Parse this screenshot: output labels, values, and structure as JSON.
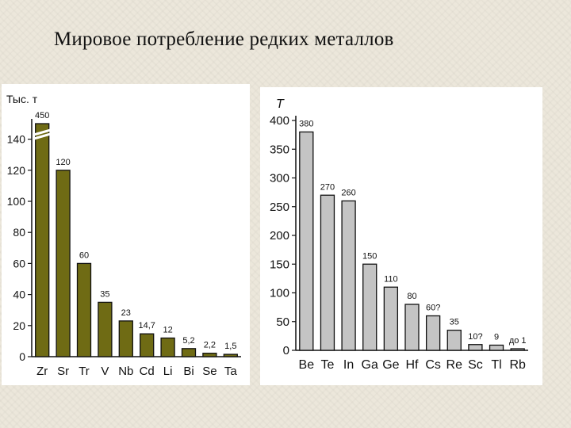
{
  "slide": {
    "title": "Мировое потребление редких металлов"
  },
  "colors": {
    "left_bar": "#6f6b14",
    "right_bar": "#c4c4c4",
    "bar_stroke": "#111111"
  },
  "chart_data": [
    {
      "type": "bar",
      "ylabel": "Тыс. т",
      "ylim": [
        0,
        150
      ],
      "yticks": [
        0,
        20,
        40,
        60,
        80,
        100,
        120,
        140
      ],
      "grid": false,
      "categories": [
        "Zr",
        "Sr",
        "Tr",
        "V",
        "Nb",
        "Cd",
        "Li",
        "Bi",
        "Se",
        "Ta"
      ],
      "values": [
        450,
        120,
        60,
        35,
        23,
        14.7,
        12,
        5.2,
        2.2,
        1.5
      ],
      "data_labels": [
        "450",
        "120",
        "60",
        "35",
        "23",
        "14,7",
        "12",
        "5,2",
        "2,2",
        "1,5"
      ],
      "axis_break": {
        "category": "Zr",
        "value": 450
      }
    },
    {
      "type": "bar",
      "ylabel": "T",
      "ylim": [
        0,
        400
      ],
      "yticks": [
        0,
        50,
        100,
        150,
        200,
        250,
        300,
        350,
        400
      ],
      "grid": false,
      "categories": [
        "Be",
        "Te",
        "In",
        "Ga",
        "Ge",
        "Hf",
        "Cs",
        "Re",
        "Sc",
        "Tl",
        "Rb"
      ],
      "values": [
        380,
        270,
        260,
        150,
        110,
        80,
        60,
        35,
        10,
        9,
        1
      ],
      "data_labels": [
        "380",
        "270",
        "260",
        "150",
        "110",
        "80",
        "60?",
        "35",
        "10?",
        "9",
        "до 1"
      ]
    }
  ]
}
